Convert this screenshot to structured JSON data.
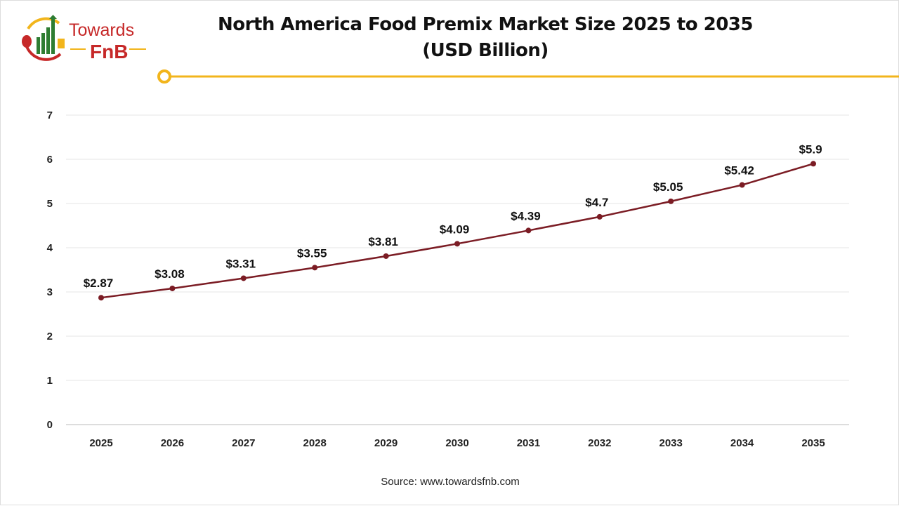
{
  "brand": {
    "logo_text_1": "Towards",
    "logo_text_2": "FnB"
  },
  "chart_data": {
    "type": "line",
    "title": "North America Food Premix Market Size 2025 to 2035",
    "subtitle": "(USD Billion)",
    "categories": [
      "2025",
      "2026",
      "2027",
      "2028",
      "2029",
      "2030",
      "2031",
      "2032",
      "2033",
      "2034",
      "2035"
    ],
    "values": [
      2.87,
      3.08,
      3.31,
      3.55,
      3.81,
      4.09,
      4.39,
      4.7,
      5.05,
      5.42,
      5.9
    ],
    "data_labels": [
      "$2.87",
      "$3.08",
      "$3.31",
      "$3.55",
      "$3.81",
      "$4.09",
      "$4.39",
      "$4.7",
      "$5.05",
      "$5.42",
      "$5.9"
    ],
    "ylim": [
      0,
      7
    ],
    "yticks": [
      "0",
      "1",
      "2",
      "3",
      "4",
      "5",
      "6",
      "7"
    ],
    "grid": true,
    "line_color": "#7b1c24",
    "xlabel": "",
    "ylabel": ""
  },
  "source": "Source: www.towardsfnb.com",
  "colors": {
    "accent": "#f2b51c",
    "brand_red": "#c62828",
    "brand_green": "#2e7d32"
  }
}
